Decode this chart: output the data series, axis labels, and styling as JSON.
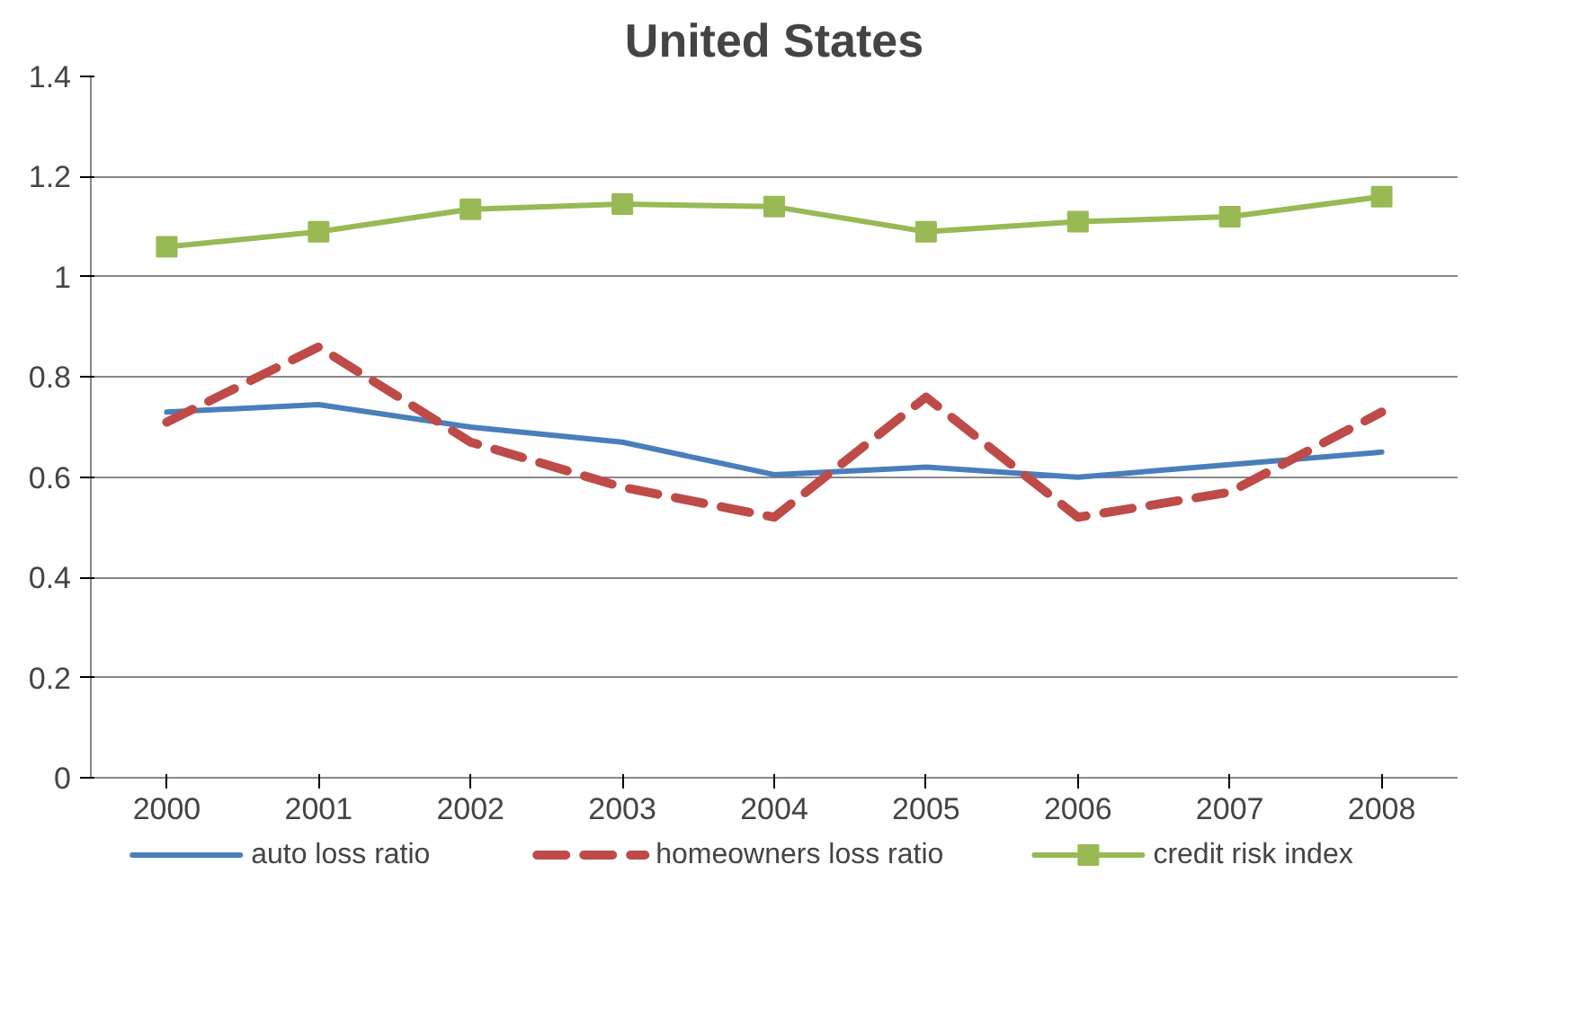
{
  "chart_data": {
    "type": "line",
    "title": "United States",
    "categories": [
      "2000",
      "2001",
      "2002",
      "2003",
      "2004",
      "2005",
      "2006",
      "2007",
      "2008"
    ],
    "series": [
      {
        "name": "auto loss ratio",
        "color": "#4a7ebb",
        "marker": "none",
        "line_style": "solid",
        "values": [
          0.73,
          0.745,
          0.7,
          0.67,
          0.605,
          0.62,
          0.6,
          0.625,
          0.65
        ]
      },
      {
        "name": "homeowners loss ratio",
        "color": "#be4b48",
        "marker": "none",
        "line_style": "dashed",
        "values": [
          0.71,
          0.86,
          0.67,
          0.58,
          0.52,
          0.76,
          0.52,
          0.57,
          0.73
        ]
      },
      {
        "name": "credit risk index",
        "color": "#98b954",
        "marker": "square",
        "line_style": "solid",
        "values": [
          1.06,
          1.09,
          1.135,
          1.145,
          1.14,
          1.09,
          1.11,
          1.12,
          1.16
        ]
      }
    ],
    "ylim": [
      0,
      1.4
    ],
    "yticks": [
      0,
      0.2,
      0.4,
      0.6,
      0.8,
      1,
      1.2,
      1.4
    ],
    "grid": "y",
    "legend": "bottom"
  }
}
